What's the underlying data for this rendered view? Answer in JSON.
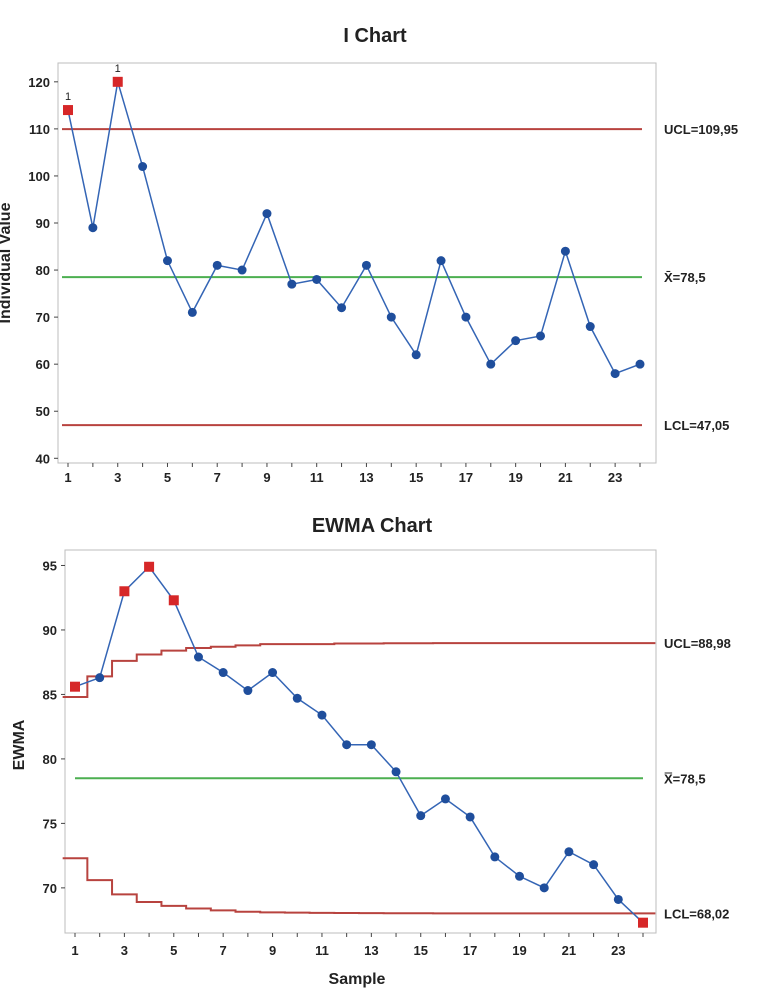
{
  "chart_data": [
    {
      "type": "line",
      "title": "I Chart",
      "xlabel": "",
      "ylabel": "Individual Value",
      "x": [
        1,
        2,
        3,
        4,
        5,
        6,
        7,
        8,
        9,
        10,
        11,
        12,
        13,
        14,
        15,
        16,
        17,
        18,
        19,
        20,
        21,
        22,
        23,
        24
      ],
      "values": [
        114,
        89,
        120,
        102,
        82,
        71,
        81,
        80,
        92,
        77,
        78,
        72,
        81,
        70,
        62,
        82,
        70,
        60,
        65,
        66,
        84,
        68,
        58,
        60
      ],
      "out_of_control": [
        1,
        3
      ],
      "ylim": [
        39,
        124
      ],
      "yticks": [
        40,
        50,
        60,
        70,
        80,
        90,
        100,
        110,
        120
      ],
      "xticks": [
        1,
        3,
        5,
        7,
        9,
        11,
        13,
        15,
        17,
        19,
        21,
        23
      ],
      "ucl": 109.95,
      "center": 78.5,
      "lcl": 47.05,
      "ucl_label": "UCL=109,95",
      "center_label": "X̄=78,5",
      "lcl_label": "LCL=47,05",
      "flag_marker": "1",
      "colors": {
        "series": "#3465b5",
        "point": "#1f4e9c",
        "out": "#d62728",
        "limit": "#b8433f",
        "center": "#4caf50"
      }
    },
    {
      "type": "line",
      "title": "EWMA Chart",
      "xlabel": "Sample",
      "ylabel": "EWMA",
      "x": [
        1,
        2,
        3,
        4,
        5,
        6,
        7,
        8,
        9,
        10,
        11,
        12,
        13,
        14,
        15,
        16,
        17,
        18,
        19,
        20,
        21,
        22,
        23,
        24
      ],
      "values": [
        85.6,
        86.3,
        93.0,
        94.9,
        92.3,
        87.9,
        86.7,
        85.3,
        86.7,
        84.7,
        83.4,
        81.1,
        81.1,
        79.0,
        75.6,
        76.9,
        75.5,
        72.4,
        70.9,
        70.0,
        72.8,
        71.8,
        69.1,
        67.3
      ],
      "out_of_control": [
        1,
        3,
        4,
        5,
        24
      ],
      "ylim": [
        66.5,
        96.2
      ],
      "yticks": [
        70,
        75,
        80,
        85,
        90,
        95
      ],
      "xticks": [
        1,
        3,
        5,
        7,
        9,
        11,
        13,
        15,
        17,
        19,
        21,
        23
      ],
      "ucl_steps": [
        84.8,
        86.4,
        87.6,
        88.1,
        88.4,
        88.6,
        88.7,
        88.8,
        88.9,
        88.9,
        88.9,
        88.95,
        88.95,
        88.97,
        88.97,
        88.98,
        88.98,
        88.98,
        88.98,
        88.98,
        88.98,
        88.98,
        88.98,
        88.98
      ],
      "lcl_steps": [
        72.3,
        70.6,
        69.5,
        68.9,
        68.6,
        68.4,
        68.25,
        68.15,
        68.1,
        68.08,
        68.06,
        68.05,
        68.04,
        68.03,
        68.03,
        68.02,
        68.02,
        68.02,
        68.02,
        68.02,
        68.02,
        68.02,
        68.02,
        68.02
      ],
      "ucl": 88.98,
      "center": 78.5,
      "lcl": 68.02,
      "ucl_label": "UCL=88,98",
      "center_label": "X̿=78,5",
      "lcl_label": "LCL=68,02",
      "colors": {
        "series": "#3465b5",
        "point": "#1f4e9c",
        "out": "#d62728",
        "limit": "#b8433f",
        "center": "#4caf50"
      }
    }
  ]
}
